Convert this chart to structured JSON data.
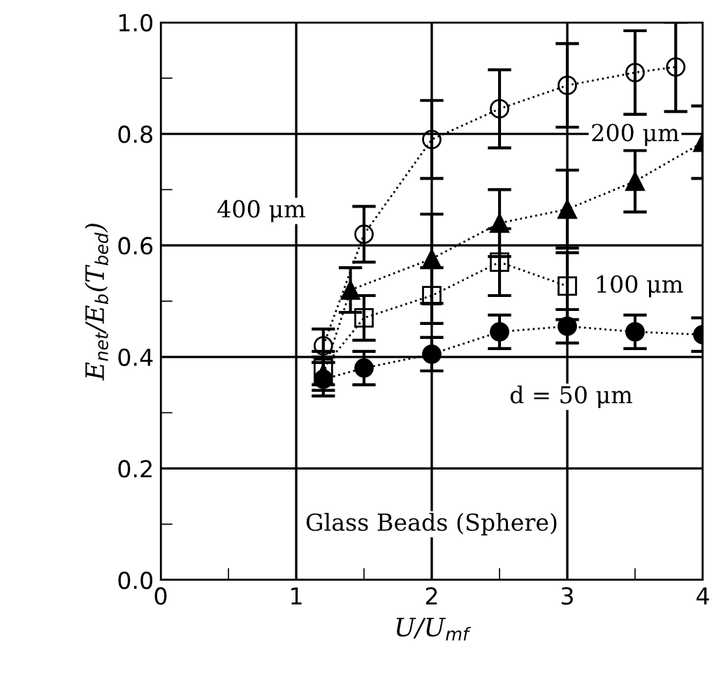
{
  "chart_data": {
    "type": "line",
    "xlabel": "U/U$_{mf}$",
    "ylabel": "E$_{net}$/E$_{b}$(T$_{bed}$)",
    "xlim": [
      0,
      4
    ],
    "xticks": [
      0,
      1,
      2,
      3,
      4
    ],
    "ylim": [
      0,
      1.0
    ],
    "yticks": [
      {
        "value": 0,
        "label": "0.0"
      },
      0.2,
      0.4,
      0.6,
      0.8,
      {
        "value": 1.0,
        "label": "1.0"
      }
    ],
    "grid": true,
    "line_style": "dotted",
    "series": [
      {
        "name": "400 μm",
        "marker": "circle",
        "color": "#000000",
        "x": [
          1.2,
          1.5,
          2.0,
          2.5,
          3.0,
          3.5,
          3.8
        ],
        "values": [
          0.42,
          0.62,
          0.79,
          0.845,
          0.887,
          0.91,
          0.92
        ],
        "errors": [
          0.03,
          0.05,
          0.07,
          0.07,
          0.075,
          0.075,
          0.08
        ]
      },
      {
        "name": "200 μm",
        "marker": "triangle",
        "color": "#000000",
        "x": [
          1.2,
          1.4,
          2.0,
          2.5,
          3.0,
          3.5,
          4.0
        ],
        "values": [
          0.37,
          0.52,
          0.576,
          0.64,
          0.665,
          0.715,
          0.785
        ],
        "errors": [
          0.03,
          0.04,
          0.08,
          0.06,
          0.07,
          0.055,
          0.065
        ]
      },
      {
        "name": "100 μm",
        "marker": "square",
        "color": "#000000",
        "x": [
          1.2,
          1.5,
          2.0,
          2.5,
          3.0
        ],
        "values": [
          0.38,
          0.47,
          0.51,
          0.57,
          0.527
        ],
        "errors": [
          0.03,
          0.04,
          0.05,
          0.06,
          0.06
        ]
      },
      {
        "name": "d = 50 μm",
        "marker": "circle",
        "color": "#000000",
        "x": [
          1.2,
          1.5,
          2.0,
          2.5,
          3.0,
          3.5,
          4.0
        ],
        "values": [
          0.36,
          0.38,
          0.405,
          0.445,
          0.455,
          0.445,
          0.44
        ],
        "errors": [
          0.03,
          0.03,
          0.03,
          0.03,
          0.03,
          0.03,
          0.03
        ]
      }
    ],
    "annotations": [
      "Glass Beads (Sphere)"
    ]
  }
}
